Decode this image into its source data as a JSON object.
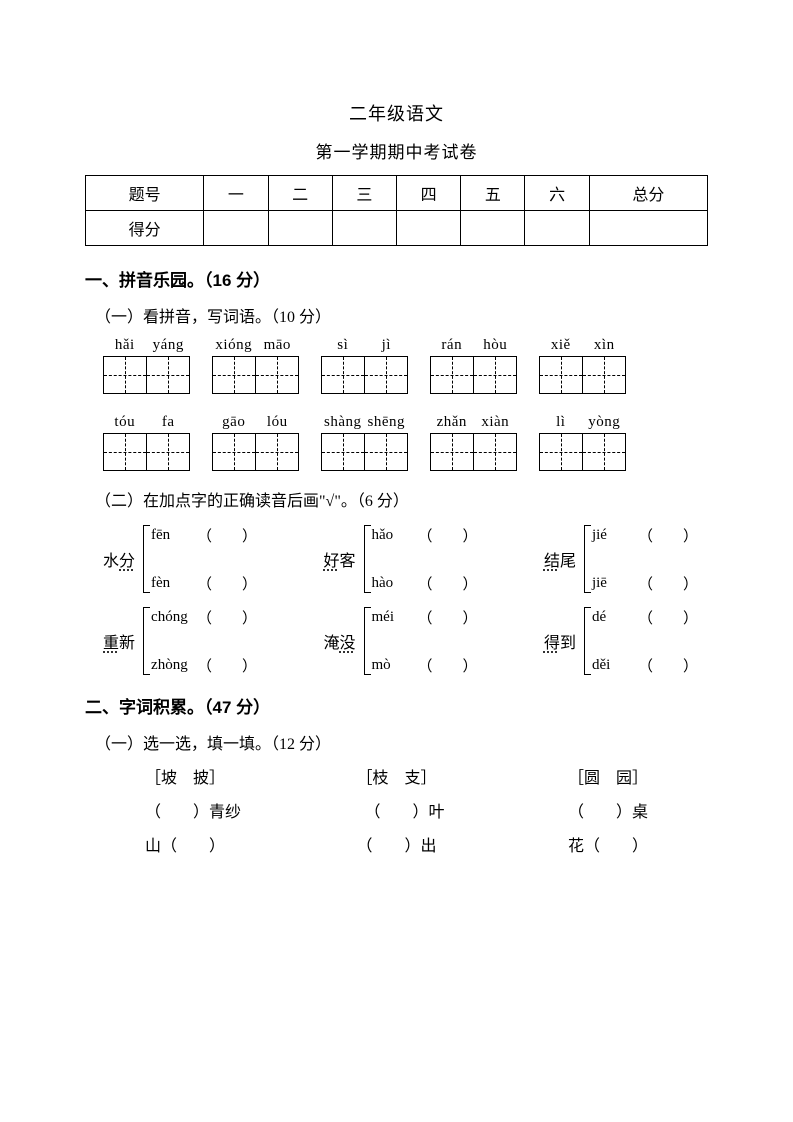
{
  "title1": "二年级语文",
  "title2": "第一学期期中考试卷",
  "scoretable": {
    "headers": [
      "题号",
      "一",
      "二",
      "三",
      "四",
      "五",
      "六",
      "总分"
    ],
    "row2first": "得分"
  },
  "s1": {
    "heading": "一、拼音乐园。（16 分）",
    "sub1": "（一）看拼音，写词语。（10 分）",
    "sub2": "（二）在加点字的正确读音后画\"√\"。（6 分）"
  },
  "pinyin_row1": [
    {
      "p": [
        "hǎi",
        "yáng"
      ]
    },
    {
      "p": [
        "xióng",
        "māo"
      ]
    },
    {
      "p": [
        "sì",
        "jì"
      ]
    },
    {
      "p": [
        "rán",
        "hòu"
      ]
    },
    {
      "p": [
        "xiě",
        "xìn"
      ]
    }
  ],
  "pinyin_row2": [
    {
      "p": [
        "tóu",
        "fa"
      ]
    },
    {
      "p": [
        "gāo",
        "lóu"
      ]
    },
    {
      "p": [
        "shàng",
        "shēng"
      ]
    },
    {
      "p": [
        "zhǎn",
        "xiàn"
      ]
    },
    {
      "p": [
        "lì",
        "yòng"
      ]
    }
  ],
  "prongroups_r1": [
    {
      "hanzi_pre": "水",
      "hanzi_dot": "分",
      "opts": [
        "fēn",
        "fèn"
      ]
    },
    {
      "hanzi_dot": "好",
      "hanzi_post": "客",
      "opts": [
        "hǎo",
        "hào"
      ]
    },
    {
      "hanzi_dot": "结",
      "hanzi_post": "尾",
      "opts": [
        "jié",
        "jiē"
      ]
    }
  ],
  "prongroups_r2": [
    {
      "hanzi_dot": "重",
      "hanzi_post": "新",
      "opts": [
        "chóng",
        "zhòng"
      ]
    },
    {
      "hanzi_pre": "淹",
      "hanzi_dot": "没",
      "opts": [
        "méi",
        "mò"
      ]
    },
    {
      "hanzi_dot": "得",
      "hanzi_post": "到",
      "opts": [
        "dé",
        "děi"
      ]
    }
  ],
  "s2": {
    "heading": "二、字词积累。（47 分）",
    "sub1": "（一）选一选，填一填。（12 分）"
  },
  "pairs": [
    {
      "options": "［坡　披］",
      "a": "（　　）青纱",
      "b": "山（　　）"
    },
    {
      "options": "［枝　支］",
      "a": "（　　）叶",
      "b": "（　　）出"
    },
    {
      "options": "［圆　园］",
      "a": "（　　）桌",
      "b": "花（　　）"
    }
  ],
  "paren": "（　　）"
}
